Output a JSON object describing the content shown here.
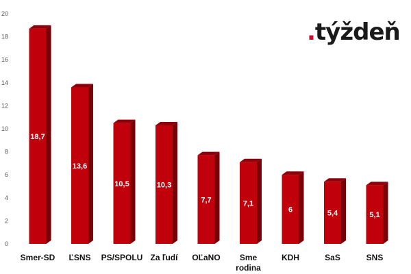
{
  "logo": {
    "dot": ".",
    "text": "týždeň"
  },
  "chart_data": {
    "type": "bar",
    "title": "",
    "xlabel": "",
    "ylabel": "",
    "categories": [
      [
        "Smer-SD"
      ],
      [
        "ĽSNS"
      ],
      [
        "PS/SPOLU"
      ],
      [
        "Za ľudí"
      ],
      [
        "OĽaNO"
      ],
      [
        "Sme",
        "rodina"
      ],
      [
        "KDH"
      ],
      [
        "SaS"
      ],
      [
        "SNS"
      ]
    ],
    "values": [
      18.7,
      13.6,
      10.5,
      10.3,
      7.7,
      7.1,
      6,
      5.4,
      5.1
    ],
    "value_labels": [
      "18,7",
      "13,6",
      "10,5",
      "10,3",
      "7,7",
      "7,1",
      "6",
      "5,4",
      "5,1"
    ],
    "ylim": [
      0,
      20
    ],
    "yticks": [
      0,
      2,
      4,
      6,
      8,
      10,
      12,
      14,
      16,
      18,
      20
    ],
    "grid": false,
    "legend": "none",
    "colors": {
      "front": "#c0000b",
      "side": "#7a0007",
      "top": "#8e000a"
    }
  }
}
